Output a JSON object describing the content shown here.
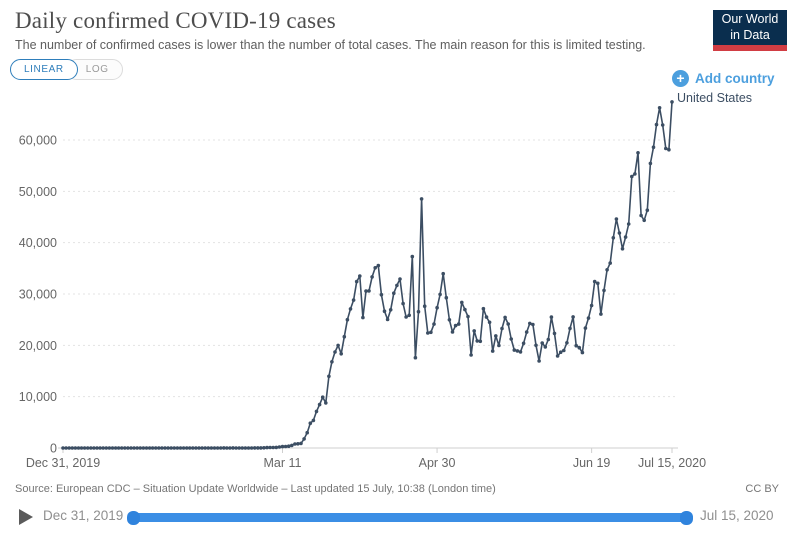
{
  "header": {
    "title": "Daily confirmed COVID-19 cases",
    "subtitle": "The number of confirmed cases is lower than the number of total cases. The main reason for this is limited testing.",
    "logo_line1": "Our World",
    "logo_line2": "in Data"
  },
  "controls": {
    "linear_label": "LINEAR",
    "log_label": "LOG",
    "add_country_label": "Add country"
  },
  "entity_label": "United States",
  "footer": {
    "source": "Source: European CDC – Situation Update Worldwide – Last updated 15 July, 10:38 (London time)",
    "license": "CC BY"
  },
  "timeline": {
    "start_label": "Dec 31, 2019",
    "end_label": "Jul 15, 2020"
  },
  "colors": {
    "line": "#3c4e63",
    "accent_blue": "#4c9fde",
    "slider_blue": "#3b8ee5",
    "logo_navy": "#0a2e4e",
    "logo_red": "#d13d43",
    "grid": "#e3e3e3",
    "axis": "#cfcfcf",
    "tick_text": "#666666"
  },
  "chart_data": {
    "type": "line",
    "title": "Daily confirmed COVID-19 cases",
    "entity": "United States",
    "x_start": "2019-12-31",
    "x_end": "2020-07-15",
    "x_tick_labels": [
      {
        "label": "Dec 31, 2019",
        "day": 0
      },
      {
        "label": "Mar 11",
        "day": 71
      },
      {
        "label": "Apr 30",
        "day": 121
      },
      {
        "label": "Jun 19",
        "day": 171
      },
      {
        "label": "Jul 15, 2020",
        "day": 197
      }
    ],
    "y_ticks": [
      0,
      10000,
      20000,
      30000,
      40000,
      50000,
      60000
    ],
    "ylim": [
      0,
      70000
    ],
    "grid": true,
    "legend_position": "end-of-line",
    "values": [
      0,
      0,
      0,
      0,
      0,
      0,
      0,
      0,
      0,
      0,
      0,
      0,
      0,
      0,
      0,
      0,
      0,
      0,
      0,
      0,
      0,
      1,
      0,
      0,
      1,
      1,
      2,
      0,
      0,
      0,
      1,
      1,
      1,
      0,
      3,
      0,
      0,
      1,
      0,
      0,
      0,
      0,
      1,
      0,
      1,
      1,
      0,
      0,
      0,
      0,
      0,
      1,
      19,
      0,
      0,
      18,
      0,
      6,
      1,
      1,
      6,
      3,
      20,
      14,
      22,
      34,
      74,
      105,
      95,
      121,
      200,
      271,
      287,
      351,
      511,
      777,
      823,
      887,
      1766,
      2988,
      4835,
      5374,
      7123,
      8459,
      9893,
      8789,
      13963,
      16797,
      18695,
      19979,
      18360,
      21678,
      24998,
      27103,
      28819,
      32425,
      33510,
      25398,
      30561,
      30613,
      33323,
      35098,
      35527,
      29861,
      26641,
      25023,
      26922,
      30148,
      31667,
      32922,
      28123,
      25528,
      25858,
      37289,
      17588,
      26543,
      48529,
      27620,
      22412,
      22541,
      24132,
      27326,
      29917,
      33955,
      29288,
      24972,
      22593,
      23841,
      24128,
      28369,
      26957,
      25612,
      18117,
      22802,
      20869,
      20782,
      27143,
      25508,
      24487,
      18873,
      21841,
      19970,
      23285,
      25434,
      24147,
      21236,
      19064,
      18910,
      18721,
      20392,
      22577,
      24266,
      24054,
      20007,
      16943,
      20461,
      19699,
      21140,
      25500,
      22334,
      17919,
      18664,
      18984,
      20486,
      23300,
      25540,
      19920,
      19543,
      18577,
      23351,
      25303,
      27762,
      32411,
      32081,
      26079,
      30706,
      34720,
      36015,
      40949,
      44602,
      41891,
      38800,
      41075,
      43644,
      52898,
      53399,
      57497,
      45300,
      44361,
      46329,
      55442,
      58601,
      63004,
      66281,
      62918,
      58349,
      58114,
      67417
    ]
  }
}
